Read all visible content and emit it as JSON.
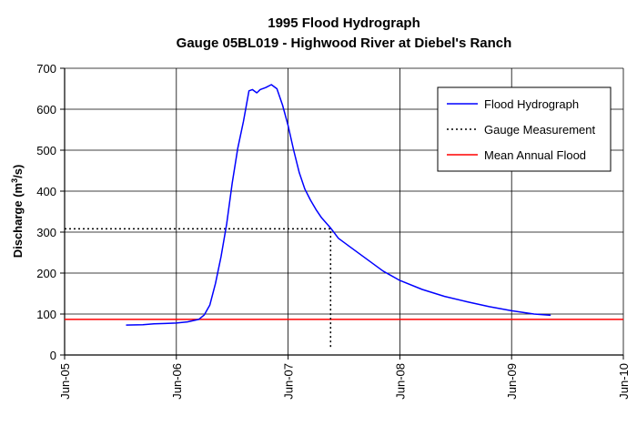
{
  "chart_data": {
    "type": "line",
    "title": "1995 Flood Hydrograph",
    "subtitle": "Gauge 05BL019 - Highwood River at Diebel's Ranch",
    "ylabel_main": "Discharge (m",
    "ylabel_sup": "3",
    "ylabel_tail": "/s)",
    "xlabel": "",
    "x_ticks": [
      "Jun-05",
      "Jun-06",
      "Jun-07",
      "Jun-08",
      "Jun-09",
      "Jun-10"
    ],
    "y_ticks": [
      0,
      100,
      200,
      300,
      400,
      500,
      600,
      700
    ],
    "xlim": [
      5,
      10
    ],
    "ylim": [
      0,
      700
    ],
    "grid": true,
    "legend_position": "top-right",
    "colors": {
      "hydrograph": "#0000ff",
      "mean_flood": "#ff0000",
      "gauge": "#000000",
      "grid": "#000000"
    },
    "series": [
      {
        "name": "Flood Hydrograph",
        "style": "solid",
        "x": [
          5.55,
          5.7,
          5.8,
          5.9,
          6.0,
          6.1,
          6.2,
          6.25,
          6.3,
          6.35,
          6.4,
          6.45,
          6.5,
          6.55,
          6.6,
          6.65,
          6.68,
          6.72,
          6.75,
          6.8,
          6.85,
          6.9,
          6.95,
          7.0,
          7.05,
          7.1,
          7.15,
          7.2,
          7.25,
          7.3,
          7.38,
          7.45,
          7.55,
          7.65,
          7.75,
          7.85,
          8.0,
          8.2,
          8.4,
          8.6,
          8.8,
          9.0,
          9.2,
          9.35
        ],
        "y": [
          73,
          74,
          76,
          77,
          78,
          81,
          87,
          98,
          122,
          175,
          240,
          320,
          420,
          505,
          570,
          645,
          648,
          640,
          648,
          653,
          660,
          650,
          610,
          560,
          500,
          445,
          405,
          378,
          355,
          335,
          310,
          285,
          265,
          245,
          225,
          205,
          182,
          160,
          143,
          130,
          118,
          108,
          100,
          97
        ]
      },
      {
        "name": "Gauge Measurement",
        "style": "dotted",
        "x": [
          5.0,
          7.38,
          7.38
        ],
        "y": [
          308,
          308,
          15
        ]
      },
      {
        "name": "Mean Annual Flood",
        "style": "solid",
        "x": [
          5.0,
          10.0
        ],
        "y": [
          87,
          87
        ]
      }
    ]
  }
}
